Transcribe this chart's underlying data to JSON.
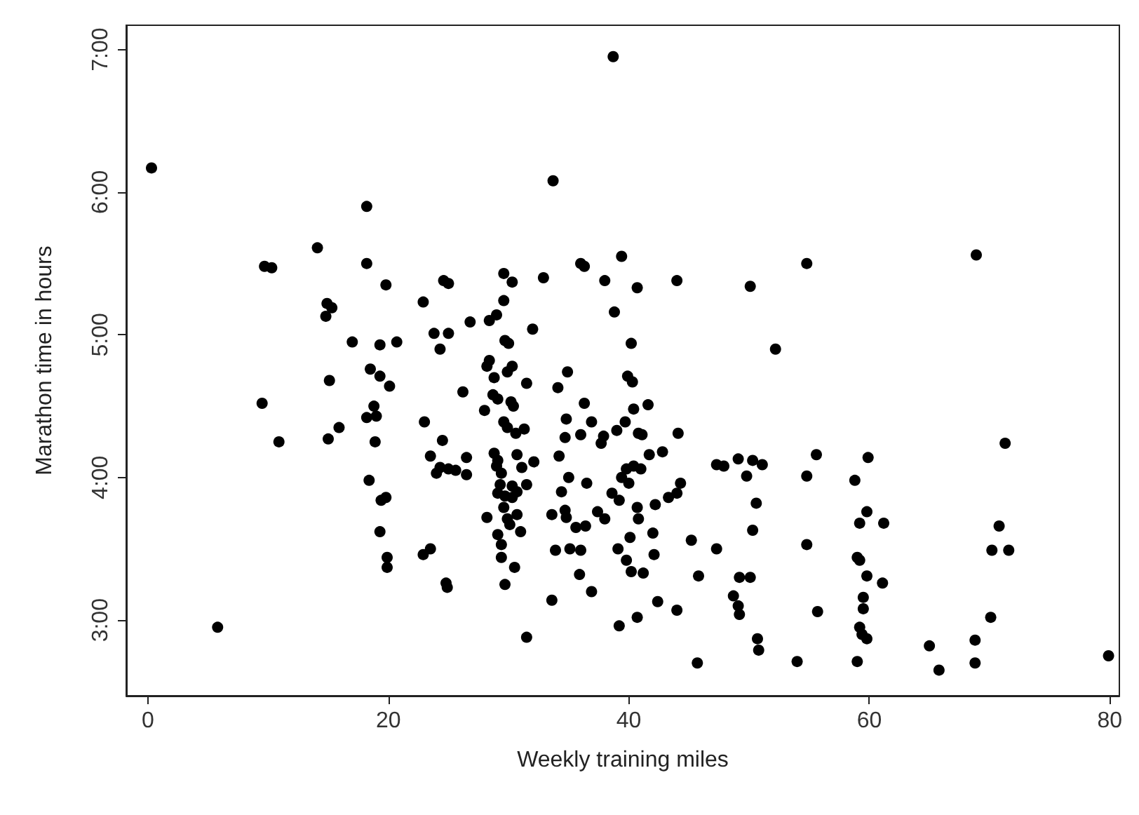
{
  "chart_data": {
    "type": "scatter",
    "xlabel": "Weekly training miles",
    "ylabel": "Marathon time in hours",
    "xlim": [
      -1.8,
      80.8
    ],
    "ylim": [
      2.47,
      7.17
    ],
    "xticks": [
      0,
      20,
      40,
      60,
      80
    ],
    "yticks": [
      {
        "value": 3,
        "label": "3:00"
      },
      {
        "value": 4,
        "label": "4:00"
      },
      {
        "value": 5,
        "label": "5:00"
      },
      {
        "value": 6,
        "label": "6:00"
      },
      {
        "value": 7,
        "label": "7:00"
      }
    ],
    "grid": false,
    "marker": "circle",
    "series": [
      {
        "color": "#000000",
        "x": [
          0.3,
          5.8,
          18.2,
          14.1,
          9.7,
          10.3,
          18.2,
          19.8,
          22.9,
          24.6,
          25.0,
          14.9,
          15.3,
          14.8,
          17.0,
          19.3,
          20.7,
          23.8,
          25.0,
          24.3,
          18.5,
          19.3,
          20.1,
          15.1,
          9.5,
          10.9,
          15.0,
          15.9,
          18.2,
          18.8,
          19.0,
          18.9,
          23.0,
          24.5,
          23.5,
          24.3,
          24.0,
          25.0,
          18.4,
          19.4,
          19.8,
          19.3,
          22.9,
          23.5,
          19.9,
          19.9,
          24.8,
          24.9,
          38.7,
          33.7,
          36.0,
          36.3,
          39.4,
          29.6,
          30.3,
          32.9,
          38.0,
          40.7,
          44.0,
          50.1,
          52.2,
          29.6,
          38.8,
          28.4,
          29.0,
          26.8,
          32.0,
          29.7,
          30.0,
          40.2,
          28.4,
          28.2,
          30.3,
          29.9,
          28.8,
          31.5,
          34.9,
          34.1,
          39.9,
          40.3,
          26.2,
          28.7,
          29.1,
          30.2,
          30.4,
          28.0,
          36.3,
          41.6,
          40.4,
          34.8,
          36.9,
          39.7,
          29.6,
          29.9,
          31.3,
          30.6,
          36.0,
          34.7,
          37.9,
          37.7,
          39.0,
          40.8,
          41.1,
          44.1,
          26.5,
          28.8,
          29.1,
          30.7,
          32.1,
          34.2,
          25.6,
          26.5,
          29.0,
          29.4,
          31.1,
          35.0,
          36.5,
          39.8,
          40.4,
          41.0,
          39.4,
          40.0,
          41.7,
          42.8,
          44.3,
          47.3,
          47.9,
          49.1,
          50.3,
          51.1,
          49.8,
          29.3,
          30.3,
          31.5,
          34.4,
          38.6,
          39.2,
          29.1,
          29.7,
          30.3,
          30.7,
          44.0,
          43.3,
          42.2,
          40.7,
          40.8,
          50.6,
          28.2,
          29.6,
          29.9,
          30.7,
          30.1,
          31.0,
          33.6,
          34.7,
          34.8,
          35.6,
          36.4,
          37.4,
          38.0,
          42.0,
          40.1,
          45.2,
          47.3,
          50.3,
          29.1,
          29.4,
          29.4,
          33.9,
          35.1,
          36.0,
          39.1,
          39.8,
          42.1,
          30.5,
          29.7,
          35.9,
          40.2,
          41.2,
          36.9,
          45.8,
          49.2,
          50.1,
          33.6,
          42.4,
          44.0,
          40.7,
          39.2,
          48.7,
          49.1,
          49.2,
          31.5,
          50.7,
          50.8,
          45.7,
          54.8,
          68.9,
          71.3,
          55.6,
          59.9,
          54.8,
          58.8,
          59.8,
          59.2,
          61.2,
          70.8,
          70.2,
          71.6,
          54.8,
          59.0,
          59.2,
          59.8,
          61.1,
          55.7,
          59.5,
          59.5,
          59.2,
          59.4,
          59.8,
          70.1,
          65.0,
          68.8,
          79.9,
          54.0,
          59.0,
          68.8,
          65.8
        ],
        "values": [
          6.17,
          2.95,
          5.9,
          5.61,
          5.48,
          5.47,
          5.5,
          5.35,
          5.23,
          5.38,
          5.36,
          5.22,
          5.19,
          5.13,
          4.95,
          4.93,
          4.95,
          5.01,
          5.01,
          4.9,
          4.76,
          4.71,
          4.64,
          4.68,
          4.52,
          4.25,
          4.27,
          4.35,
          4.42,
          4.5,
          4.43,
          4.25,
          4.39,
          4.26,
          4.15,
          4.07,
          4.03,
          4.06,
          3.98,
          3.84,
          3.86,
          3.62,
          3.46,
          3.5,
          3.44,
          3.37,
          3.26,
          3.23,
          6.95,
          6.08,
          5.5,
          5.48,
          5.55,
          5.43,
          5.37,
          5.4,
          5.38,
          5.33,
          5.38,
          5.34,
          4.9,
          5.24,
          5.16,
          5.1,
          5.14,
          5.09,
          5.04,
          4.96,
          4.94,
          4.94,
          4.82,
          4.78,
          4.78,
          4.74,
          4.7,
          4.66,
          4.74,
          4.63,
          4.71,
          4.67,
          4.6,
          4.58,
          4.55,
          4.53,
          4.5,
          4.47,
          4.52,
          4.51,
          4.48,
          4.41,
          4.39,
          4.39,
          4.39,
          4.35,
          4.34,
          4.31,
          4.3,
          4.28,
          4.29,
          4.24,
          4.33,
          4.31,
          4.3,
          4.31,
          4.14,
          4.17,
          4.12,
          4.16,
          4.11,
          4.15,
          4.05,
          4.02,
          4.08,
          4.03,
          4.07,
          4.0,
          3.96,
          4.06,
          4.08,
          4.06,
          4.0,
          3.96,
          4.16,
          4.18,
          3.96,
          4.09,
          4.08,
          4.13,
          4.12,
          4.09,
          4.01,
          3.95,
          3.94,
          3.95,
          3.9,
          3.89,
          3.84,
          3.89,
          3.87,
          3.86,
          3.9,
          3.89,
          3.86,
          3.81,
          3.79,
          3.71,
          3.82,
          3.72,
          3.79,
          3.71,
          3.74,
          3.67,
          3.62,
          3.74,
          3.77,
          3.72,
          3.65,
          3.66,
          3.76,
          3.71,
          3.61,
          3.58,
          3.56,
          3.5,
          3.63,
          3.6,
          3.53,
          3.44,
          3.49,
          3.5,
          3.49,
          3.5,
          3.42,
          3.46,
          3.37,
          3.25,
          3.32,
          3.34,
          3.33,
          3.2,
          3.31,
          3.3,
          3.3,
          3.14,
          3.13,
          3.07,
          3.02,
          2.96,
          3.17,
          3.1,
          3.04,
          2.88,
          2.87,
          2.79,
          2.7,
          5.5,
          5.56,
          4.24,
          4.16,
          4.14,
          4.01,
          3.98,
          3.76,
          3.68,
          3.68,
          3.66,
          3.49,
          3.49,
          3.53,
          3.44,
          3.42,
          3.31,
          3.26,
          3.06,
          3.16,
          3.08,
          2.95,
          2.9,
          2.87,
          3.02,
          2.82,
          2.86,
          2.75,
          2.71,
          2.71,
          2.7,
          2.65
        ]
      }
    ]
  }
}
